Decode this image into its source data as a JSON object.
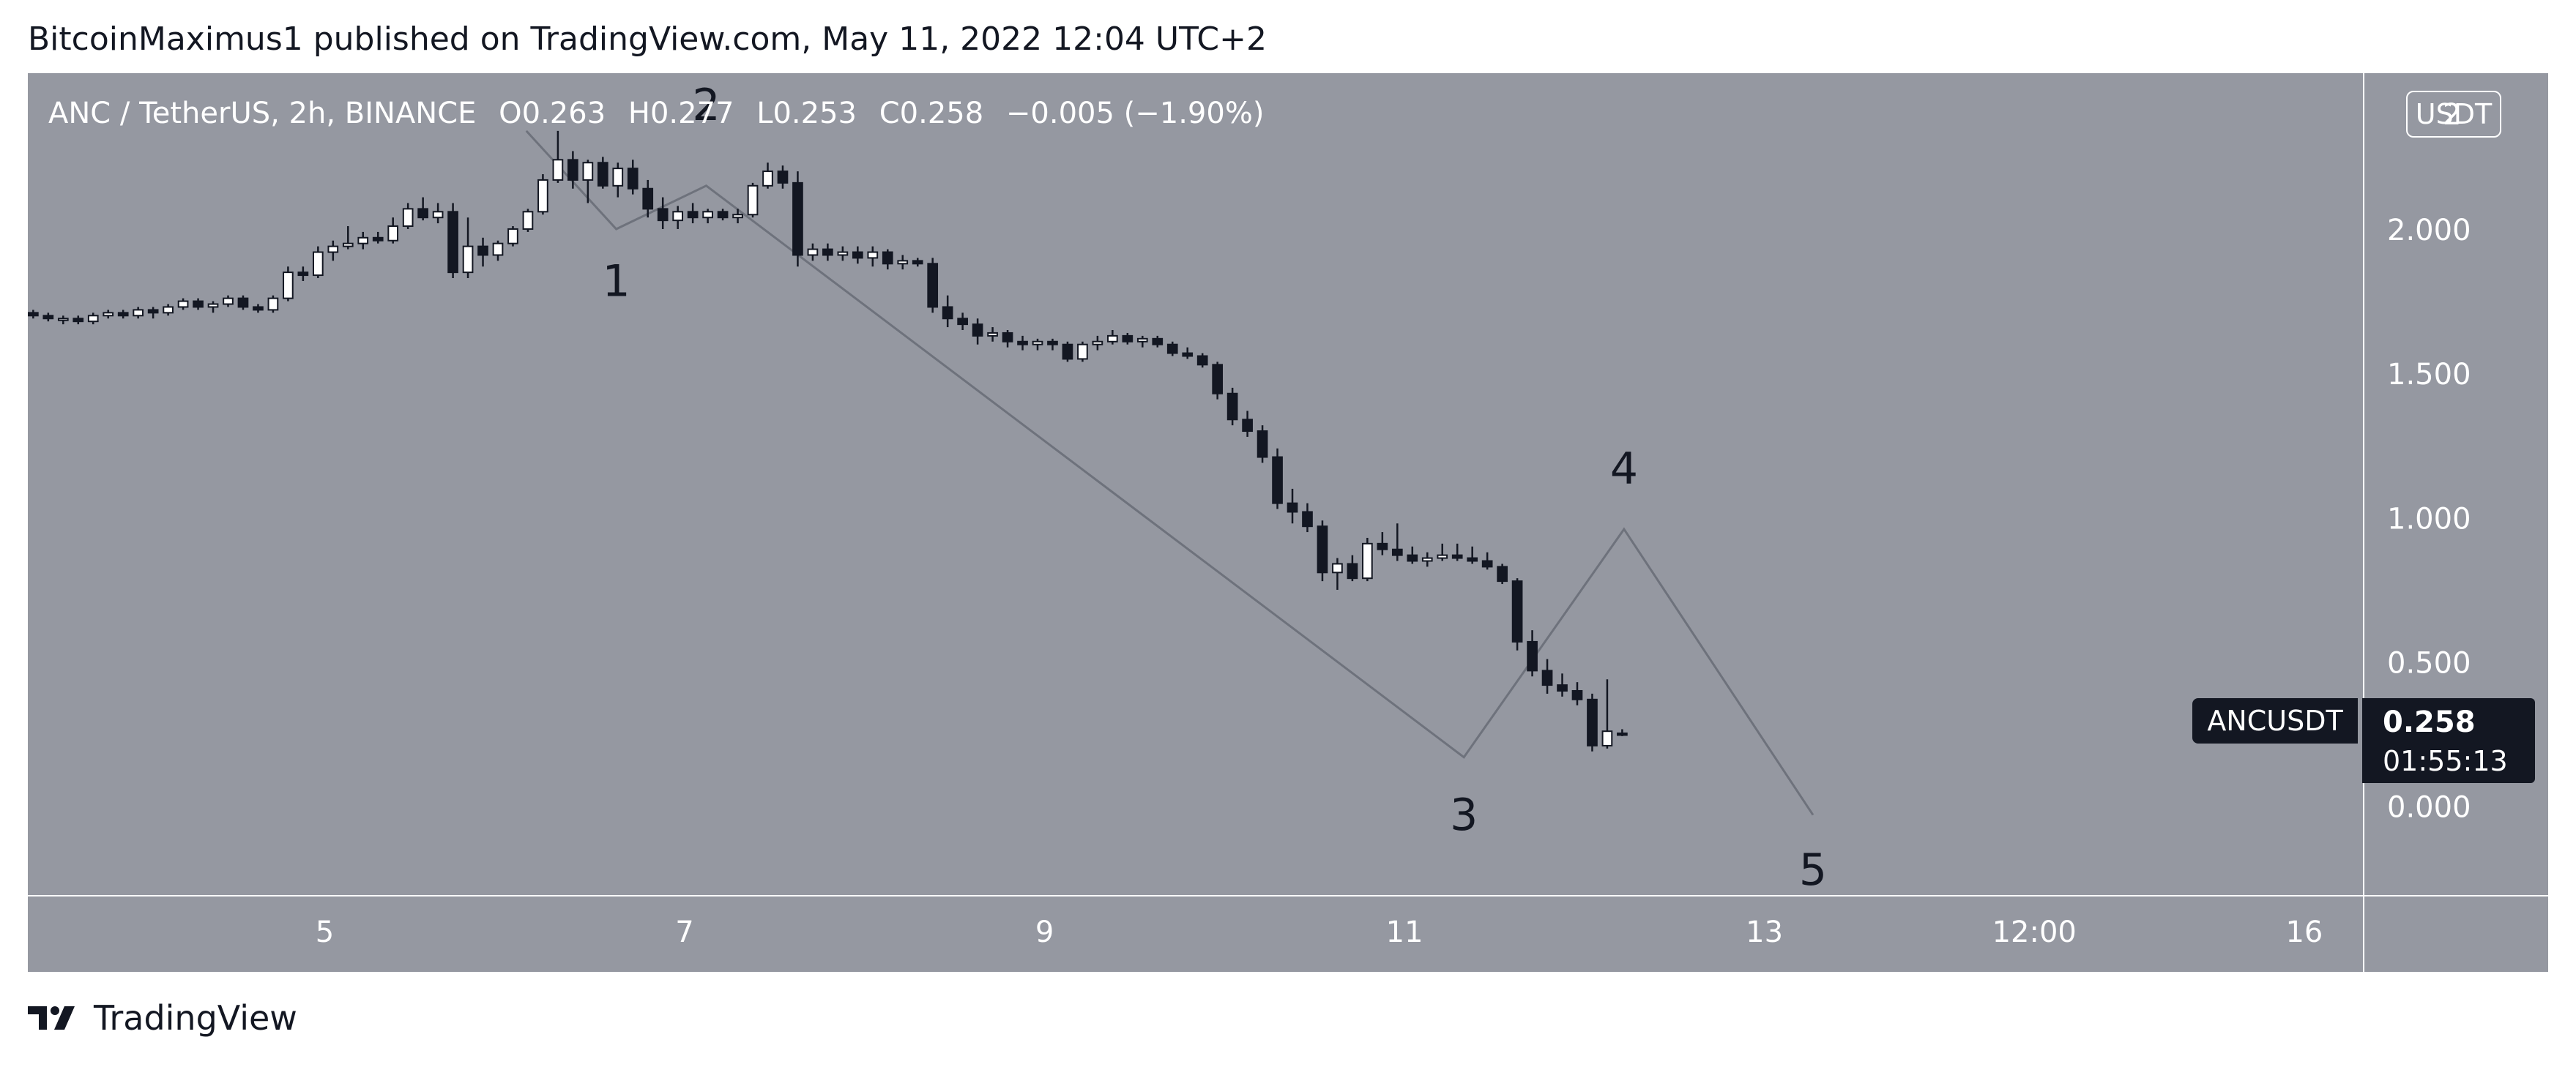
{
  "header": {
    "publisher_line": "BitcoinMaximus1 published on TradingView.com, May 11, 2022 12:04 UTC+2"
  },
  "legend": {
    "symbol": "ANC / TetherUS, 2h, BINANCE",
    "open_label": "O",
    "open": "0.263",
    "high_label": "H",
    "high": "0.277",
    "low_label": "L",
    "low": "0.253",
    "close_label": "C",
    "close": "0.258",
    "change": "−0.005 (−1.90%)"
  },
  "price_axis": {
    "currency": "USDT",
    "top_partial_label": "2"
  },
  "last_price": {
    "symbol": "ANCUSDT",
    "price": "0.258",
    "countdown": "01:55:13"
  },
  "footer": {
    "brand": "TradingView"
  },
  "colors": {
    "background": "#9598a1",
    "bull_candle": "#ffffff",
    "bear_candle": "#131722",
    "text": "#ffffff",
    "wave_line": "#6e727c"
  },
  "chart_data": {
    "type": "candlestick",
    "y_axis": {
      "min": -0.3,
      "max": 2.55,
      "ticks": [
        0.0,
        0.5,
        1.0,
        1.5,
        2.0
      ],
      "tick_labels": [
        "0.000",
        "0.500",
        "1.000",
        "1.500",
        "2.000"
      ],
      "position": "right"
    },
    "x_axis": {
      "min": 3.35,
      "max": 16.33,
      "ticks": [
        5,
        7,
        9,
        11,
        13,
        14.5,
        16
      ],
      "tick_labels": [
        "5",
        "7",
        "9",
        "11",
        "13",
        "12:00",
        "16"
      ]
    },
    "grid": false,
    "candles_ohlc": [
      [
        1.72,
        1.73,
        1.7,
        1.71
      ],
      [
        1.71,
        1.72,
        1.69,
        1.7
      ],
      [
        1.7,
        1.71,
        1.68,
        1.7
      ],
      [
        1.7,
        1.71,
        1.68,
        1.69
      ],
      [
        1.69,
        1.72,
        1.68,
        1.71
      ],
      [
        1.71,
        1.73,
        1.7,
        1.72
      ],
      [
        1.72,
        1.73,
        1.7,
        1.71
      ],
      [
        1.71,
        1.74,
        1.7,
        1.73
      ],
      [
        1.73,
        1.74,
        1.7,
        1.72
      ],
      [
        1.72,
        1.75,
        1.71,
        1.74
      ],
      [
        1.74,
        1.77,
        1.73,
        1.76
      ],
      [
        1.76,
        1.77,
        1.73,
        1.74
      ],
      [
        1.74,
        1.76,
        1.72,
        1.75
      ],
      [
        1.75,
        1.78,
        1.74,
        1.77
      ],
      [
        1.77,
        1.78,
        1.73,
        1.74
      ],
      [
        1.74,
        1.75,
        1.72,
        1.73
      ],
      [
        1.73,
        1.78,
        1.72,
        1.77
      ],
      [
        1.77,
        1.88,
        1.76,
        1.86
      ],
      [
        1.86,
        1.88,
        1.83,
        1.85
      ],
      [
        1.85,
        1.95,
        1.84,
        1.93
      ],
      [
        1.93,
        1.97,
        1.9,
        1.95
      ],
      [
        1.95,
        2.02,
        1.94,
        1.96
      ],
      [
        1.96,
        2.0,
        1.94,
        1.98
      ],
      [
        1.98,
        2.0,
        1.96,
        1.97
      ],
      [
        1.97,
        2.05,
        1.96,
        2.02
      ],
      [
        2.02,
        2.1,
        2.01,
        2.08
      ],
      [
        2.08,
        2.12,
        2.04,
        2.05
      ],
      [
        2.05,
        2.1,
        2.03,
        2.07
      ],
      [
        2.07,
        2.1,
        1.84,
        1.86
      ],
      [
        1.86,
        2.05,
        1.84,
        1.95
      ],
      [
        1.95,
        1.98,
        1.88,
        1.92
      ],
      [
        1.92,
        1.97,
        1.9,
        1.96
      ],
      [
        1.96,
        2.02,
        1.95,
        2.01
      ],
      [
        2.01,
        2.08,
        2.0,
        2.07
      ],
      [
        2.07,
        2.2,
        2.06,
        2.18
      ],
      [
        2.18,
        2.35,
        2.17,
        2.25
      ],
      [
        2.25,
        2.28,
        2.15,
        2.18
      ],
      [
        2.18,
        2.25,
        2.1,
        2.24
      ],
      [
        2.24,
        2.26,
        2.15,
        2.16
      ],
      [
        2.16,
        2.24,
        2.12,
        2.22
      ],
      [
        2.22,
        2.25,
        2.13,
        2.15
      ],
      [
        2.15,
        2.18,
        2.05,
        2.08
      ],
      [
        2.08,
        2.12,
        2.01,
        2.04
      ],
      [
        2.04,
        2.09,
        2.01,
        2.07
      ],
      [
        2.07,
        2.1,
        2.03,
        2.05
      ],
      [
        2.05,
        2.08,
        2.03,
        2.07
      ],
      [
        2.07,
        2.08,
        2.04,
        2.05
      ],
      [
        2.05,
        2.08,
        2.03,
        2.06
      ],
      [
        2.06,
        2.17,
        2.05,
        2.16
      ],
      [
        2.16,
        2.24,
        2.15,
        2.21
      ],
      [
        2.21,
        2.23,
        2.15,
        2.17
      ],
      [
        2.17,
        2.21,
        1.88,
        1.92
      ],
      [
        1.92,
        1.96,
        1.9,
        1.94
      ],
      [
        1.94,
        1.96,
        1.9,
        1.92
      ],
      [
        1.92,
        1.95,
        1.9,
        1.93
      ],
      [
        1.93,
        1.95,
        1.89,
        1.91
      ],
      [
        1.91,
        1.95,
        1.88,
        1.93
      ],
      [
        1.93,
        1.94,
        1.87,
        1.89
      ],
      [
        1.89,
        1.92,
        1.87,
        1.9
      ],
      [
        1.9,
        1.91,
        1.88,
        1.89
      ],
      [
        1.89,
        1.91,
        1.72,
        1.74
      ],
      [
        1.74,
        1.78,
        1.67,
        1.7
      ],
      [
        1.7,
        1.72,
        1.66,
        1.68
      ],
      [
        1.68,
        1.7,
        1.61,
        1.64
      ],
      [
        1.64,
        1.67,
        1.62,
        1.65
      ],
      [
        1.65,
        1.66,
        1.6,
        1.62
      ],
      [
        1.62,
        1.64,
        1.59,
        1.61
      ],
      [
        1.61,
        1.63,
        1.59,
        1.62
      ],
      [
        1.62,
        1.63,
        1.59,
        1.61
      ],
      [
        1.61,
        1.62,
        1.55,
        1.56
      ],
      [
        1.56,
        1.62,
        1.55,
        1.61
      ],
      [
        1.61,
        1.64,
        1.59,
        1.62
      ],
      [
        1.62,
        1.66,
        1.61,
        1.64
      ],
      [
        1.64,
        1.65,
        1.61,
        1.62
      ],
      [
        1.62,
        1.64,
        1.6,
        1.63
      ],
      [
        1.63,
        1.64,
        1.6,
        1.61
      ],
      [
        1.61,
        1.62,
        1.57,
        1.58
      ],
      [
        1.58,
        1.6,
        1.56,
        1.57
      ],
      [
        1.57,
        1.58,
        1.53,
        1.54
      ],
      [
        1.54,
        1.55,
        1.42,
        1.44
      ],
      [
        1.44,
        1.46,
        1.33,
        1.35
      ],
      [
        1.35,
        1.38,
        1.29,
        1.31
      ],
      [
        1.31,
        1.33,
        1.2,
        1.22
      ],
      [
        1.22,
        1.25,
        1.04,
        1.06
      ],
      [
        1.06,
        1.11,
        0.99,
        1.03
      ],
      [
        1.03,
        1.06,
        0.96,
        0.98
      ],
      [
        0.98,
        1.0,
        0.79,
        0.82
      ],
      [
        0.82,
        0.87,
        0.76,
        0.85
      ],
      [
        0.85,
        0.88,
        0.79,
        0.8
      ],
      [
        0.8,
        0.94,
        0.79,
        0.92
      ],
      [
        0.92,
        0.96,
        0.88,
        0.9
      ],
      [
        0.9,
        0.99,
        0.86,
        0.88
      ],
      [
        0.88,
        0.91,
        0.85,
        0.86
      ],
      [
        0.86,
        0.89,
        0.84,
        0.87
      ],
      [
        0.87,
        0.92,
        0.86,
        0.88
      ],
      [
        0.88,
        0.92,
        0.86,
        0.87
      ],
      [
        0.87,
        0.91,
        0.85,
        0.86
      ],
      [
        0.86,
        0.89,
        0.83,
        0.84
      ],
      [
        0.84,
        0.85,
        0.78,
        0.79
      ],
      [
        0.79,
        0.8,
        0.55,
        0.58
      ],
      [
        0.58,
        0.62,
        0.46,
        0.48
      ],
      [
        0.48,
        0.52,
        0.4,
        0.43
      ],
      [
        0.43,
        0.47,
        0.39,
        0.41
      ],
      [
        0.41,
        0.44,
        0.36,
        0.38
      ],
      [
        0.38,
        0.4,
        0.2,
        0.22
      ],
      [
        0.22,
        0.45,
        0.21,
        0.27
      ],
      [
        0.263,
        0.277,
        0.253,
        0.258
      ]
    ],
    "candle_start_x": 3.38,
    "candle_interval_days": 0.0833,
    "wave_path": [
      {
        "x": 6.12,
        "y": 2.35
      },
      {
        "x": 6.62,
        "y": 2.01
      },
      {
        "x": 7.12,
        "y": 2.16
      },
      {
        "x": 11.33,
        "y": 0.18
      },
      {
        "x": 12.22,
        "y": 0.97
      },
      {
        "x": 13.27,
        "y": -0.02
      }
    ],
    "wave_labels": [
      {
        "text": "1",
        "x": 6.62,
        "y": 1.82
      },
      {
        "text": "2",
        "x": 7.12,
        "y": 2.43
      },
      {
        "text": "3",
        "x": 11.33,
        "y": -0.03
      },
      {
        "text": "4",
        "x": 12.22,
        "y": 1.17
      },
      {
        "text": "5",
        "x": 13.27,
        "y": -0.22
      }
    ]
  }
}
